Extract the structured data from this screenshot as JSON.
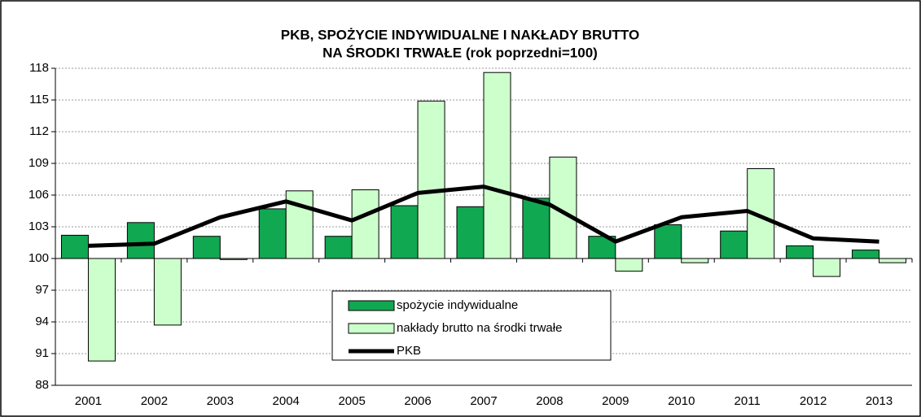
{
  "chart_data": {
    "type": "bar-line",
    "title": [
      "PKB, SPOŻYCIE INDYWIDUALNE I NAKŁADY BRUTTO",
      "NA ŚRODKI TRWAŁE (rok poprzedni=100)"
    ],
    "categories": [
      "2001",
      "2002",
      "2003",
      "2004",
      "2005",
      "2006",
      "2007",
      "2008",
      "2009",
      "2010",
      "2011",
      "2012",
      "2013"
    ],
    "series": [
      {
        "name": "spożycie indywidualne",
        "type": "bar",
        "color": "#10a850",
        "values": [
          102.2,
          103.4,
          102.1,
          104.7,
          102.1,
          105.0,
          104.9,
          105.7,
          102.1,
          103.2,
          102.6,
          101.2,
          100.8
        ]
      },
      {
        "name": "nakłady brutto na środki trwałe",
        "type": "bar",
        "color": "#ccffcc",
        "values": [
          90.3,
          93.7,
          99.9,
          106.4,
          106.5,
          114.9,
          117.6,
          109.6,
          98.8,
          99.6,
          108.5,
          98.3,
          99.6
        ]
      },
      {
        "name": "PKB",
        "type": "line",
        "color": "#000000",
        "values": [
          101.2,
          101.4,
          103.9,
          105.4,
          103.6,
          106.2,
          106.8,
          105.1,
          101.6,
          103.9,
          104.5,
          101.9,
          101.6
        ]
      }
    ],
    "ylim": [
      88,
      118
    ],
    "yticks": [
      88,
      91,
      94,
      97,
      100,
      103,
      106,
      109,
      112,
      115,
      118
    ],
    "grid": true,
    "baseline": 100
  }
}
